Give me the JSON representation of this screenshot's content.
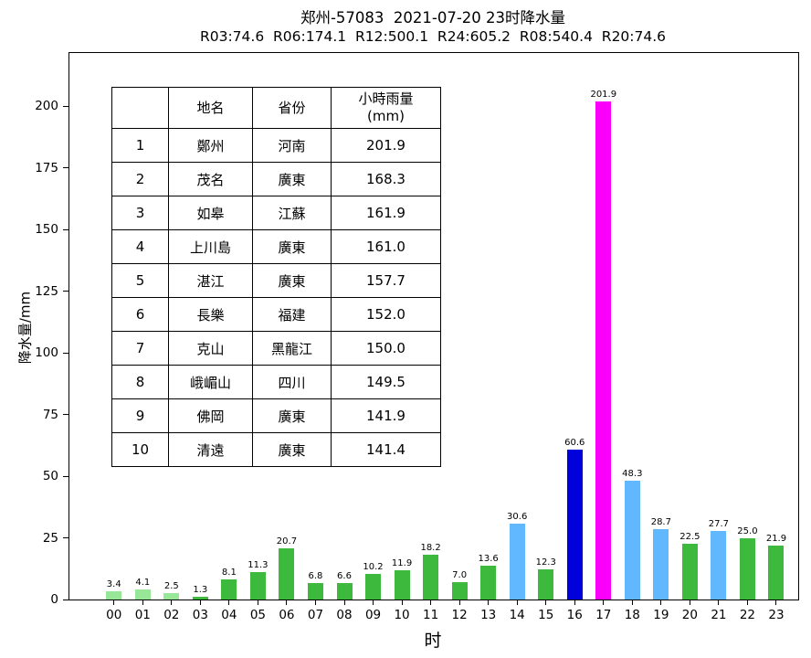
{
  "title": "郑州-57083  2021-07-20 23时降水量",
  "subtitle": "R03:74.6  R06:174.1  R12:500.1  R24:605.2  R08:540.4  R20:74.6",
  "chart_data": {
    "type": "bar",
    "title": "郑州-57083  2021-07-20 23时降水量",
    "subtitle": "R03:74.6  R06:174.1  R12:500.1  R24:605.2  R08:540.4  R20:74.6",
    "xlabel": "时",
    "ylabel": "降水量/mm",
    "ylim": [
      0,
      221.5
    ],
    "yticks": [
      0,
      25,
      50,
      75,
      100,
      125,
      150,
      175,
      200
    ],
    "grid": false,
    "legend": "none",
    "categories": [
      "00",
      "01",
      "02",
      "03",
      "04",
      "05",
      "06",
      "07",
      "08",
      "09",
      "10",
      "11",
      "12",
      "13",
      "14",
      "15",
      "16",
      "17",
      "18",
      "19",
      "20",
      "21",
      "22",
      "23"
    ],
    "values": [
      3.4,
      4.1,
      2.5,
      1.3,
      8.1,
      11.3,
      20.7,
      6.8,
      6.6,
      10.2,
      11.9,
      18.2,
      7.0,
      13.6,
      30.6,
      12.3,
      60.6,
      201.9,
      48.3,
      28.7,
      22.5,
      27.7,
      25.0,
      21.9
    ],
    "bar_colors": [
      "#98e698",
      "#98e698",
      "#98e698",
      "#3dba3d",
      "#3dba3d",
      "#3dba3d",
      "#3dba3d",
      "#3dba3d",
      "#3dba3d",
      "#3dba3d",
      "#3dba3d",
      "#3dba3d",
      "#3dba3d",
      "#3dba3d",
      "#61b8ff",
      "#3dba3d",
      "#0000dd",
      "#fa00fa",
      "#61b8ff",
      "#61b8ff",
      "#3dba3d",
      "#61b8ff",
      "#3dba3d",
      "#3dba3d"
    ],
    "palette": {
      "light_green": "#98e698",
      "green": "#3dba3d",
      "sky_blue": "#61b8ff",
      "blue": "#0000dd",
      "magenta": "#fa00fa"
    }
  },
  "table": {
    "headers": [
      "",
      "地名",
      "省份",
      "小時雨量\n(mm)"
    ],
    "rows": [
      [
        "1",
        "鄭州",
        "河南",
        "201.9"
      ],
      [
        "2",
        "茂名",
        "廣東",
        "168.3"
      ],
      [
        "3",
        "如皋",
        "江蘇",
        "161.9"
      ],
      [
        "4",
        "上川島",
        "廣東",
        "161.0"
      ],
      [
        "5",
        "湛江",
        "廣東",
        "157.7"
      ],
      [
        "6",
        "長樂",
        "福建",
        "152.0"
      ],
      [
        "7",
        "克山",
        "黑龍江",
        "150.0"
      ],
      [
        "8",
        "峨嵋山",
        "四川",
        "149.5"
      ],
      [
        "9",
        "佛岡",
        "廣東",
        "141.9"
      ],
      [
        "10",
        "清遠",
        "廣東",
        "141.4"
      ]
    ]
  }
}
